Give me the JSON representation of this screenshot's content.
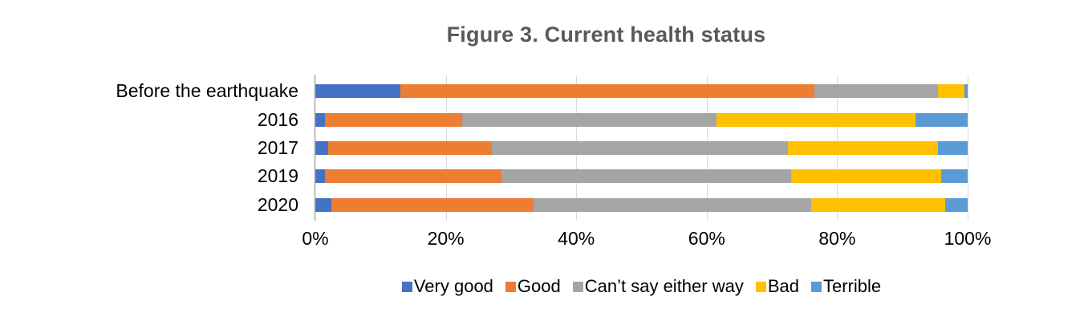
{
  "title": "Figure 3. Current health status",
  "style": {
    "title_color": "#595959",
    "text_color": "#000000",
    "gridline_color": "#d9d9d9",
    "axis_color": "#d0d0d0",
    "background": "#ffffff"
  },
  "chart_data": {
    "type": "bar",
    "variant": "horizontal-stacked-100pct",
    "title": "Figure 3. Current health status",
    "categories": [
      "Before the earthquake",
      "2016",
      "2017",
      "2019",
      "2020"
    ],
    "series": [
      {
        "name": "Very good",
        "color": "#4472C4",
        "values": [
          13,
          1.5,
          2,
          1.5,
          2.5
        ]
      },
      {
        "name": "Good",
        "color": "#ED7D31",
        "values": [
          63.5,
          21,
          25,
          27,
          31
        ]
      },
      {
        "name": "Can’t say either way",
        "color": "#A5A5A5",
        "values": [
          19,
          39,
          45.5,
          44.5,
          42.5
        ]
      },
      {
        "name": "Bad",
        "color": "#FFC000",
        "values": [
          4,
          30.5,
          23,
          23,
          20.5
        ]
      },
      {
        "name": "Terrible",
        "color": "#5B9BD5",
        "values": [
          0.5,
          8,
          4.5,
          4,
          3.5
        ]
      }
    ],
    "x_ticks": [
      "0%",
      "20%",
      "40%",
      "60%",
      "80%",
      "100%"
    ],
    "xlim": [
      0,
      100
    ],
    "xlabel": "",
    "ylabel": "",
    "grid": true,
    "legend_position": "bottom"
  }
}
